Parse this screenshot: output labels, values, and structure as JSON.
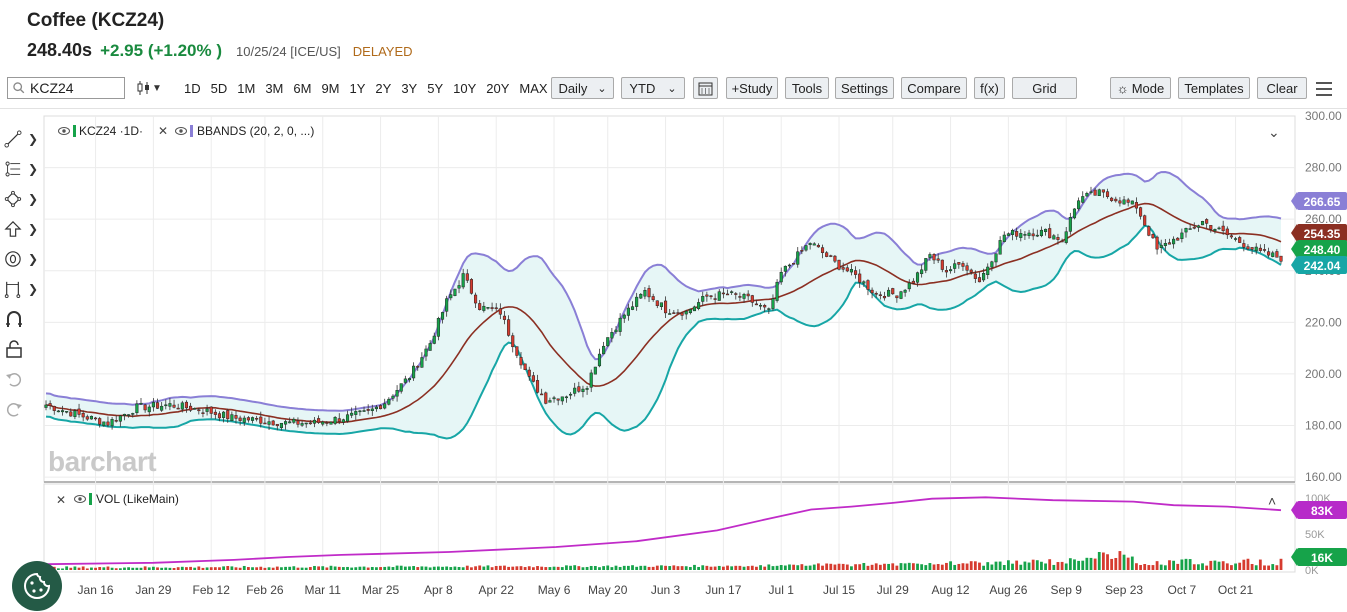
{
  "header": {
    "title": "Coffee (KCZ24)",
    "last": "248.40s",
    "change": "+2.95 (+1.20% )",
    "meta": "10/25/24 [ICE/US]",
    "delayed": "DELAYED"
  },
  "toolbar": {
    "symbol_value": "KCZ24",
    "ranges": [
      "1D",
      "5D",
      "1M",
      "3M",
      "6M",
      "9M",
      "1Y",
      "2Y",
      "3Y",
      "5Y",
      "10Y",
      "20Y",
      "MAX"
    ],
    "interval": "Daily",
    "period": "YTD",
    "study": "+Study",
    "tools": "Tools",
    "settings": "Settings",
    "compare": "Compare",
    "fx": "f(x)",
    "grid": "Grid",
    "mode": "Mode",
    "templates": "Templates",
    "clear": "Clear"
  },
  "legend": {
    "main": "KCZ24 ·1D·",
    "bbands": "BBANDS (20, 2, 0, ...)",
    "vol": "VOL (LikeMain)"
  },
  "logo": "barchart",
  "colors": {
    "up": "#16a34a",
    "down": "#d63b2f",
    "upper_band": "#8a7fd6",
    "middle_band": "#8b2f22",
    "lower_band": "#17a6a6",
    "band_fill": "#e6f6f6",
    "vol_avg": "#c02bc8"
  },
  "chart_data": [
    {
      "type": "candlestick",
      "title": "",
      "x_tick_labels": [
        "Jan 16",
        "Jan 29",
        "Feb 12",
        "Feb 26",
        "Mar 11",
        "Mar 25",
        "Apr 8",
        "Apr 22",
        "May 6",
        "May 20",
        "Jun 3",
        "Jun 17",
        "Jul 1",
        "Jul 15",
        "Jul 29",
        "Aug 12",
        "Aug 26",
        "Sep 9",
        "Sep 23",
        "Oct 7",
        "Oct 21"
      ],
      "y_ticks": [
        "160.00",
        "180.00",
        "200.00",
        "220.00",
        "240.00",
        "260.00",
        "280.00",
        "300.00"
      ],
      "ylim": [
        155,
        300
      ],
      "close_path": [
        [
          0,
          188
        ],
        [
          8,
          184
        ],
        [
          15,
          181
        ],
        [
          22,
          187
        ],
        [
          30,
          188
        ],
        [
          38,
          186
        ],
        [
          45,
          183
        ],
        [
          52,
          182
        ],
        [
          58,
          181
        ],
        [
          65,
          181
        ],
        [
          72,
          183
        ],
        [
          78,
          185
        ],
        [
          82,
          189
        ],
        [
          88,
          199
        ],
        [
          93,
          212
        ],
        [
          97,
          228
        ],
        [
          101,
          238
        ],
        [
          105,
          226
        ],
        [
          110,
          224
        ],
        [
          113,
          212
        ],
        [
          117,
          198
        ],
        [
          121,
          190
        ],
        [
          126,
          192
        ],
        [
          131,
          196
        ],
        [
          135,
          212
        ],
        [
          140,
          223
        ],
        [
          145,
          232
        ],
        [
          150,
          225
        ],
        [
          155,
          224
        ],
        [
          160,
          230
        ],
        [
          165,
          231
        ],
        [
          170,
          229
        ],
        [
          175,
          224
        ],
        [
          178,
          239
        ],
        [
          185,
          251
        ],
        [
          191,
          243
        ],
        [
          196,
          238
        ],
        [
          201,
          231
        ],
        [
          206,
          231
        ],
        [
          210,
          236
        ],
        [
          214,
          246
        ],
        [
          218,
          240
        ],
        [
          222,
          243
        ],
        [
          226,
          236
        ],
        [
          232,
          254
        ],
        [
          237,
          255
        ],
        [
          242,
          255
        ],
        [
          246,
          252
        ],
        [
          250,
          268
        ],
        [
          255,
          270
        ],
        [
          259,
          268
        ],
        [
          264,
          265
        ],
        [
          269,
          248
        ],
        [
          275,
          254
        ],
        [
          280,
          259
        ],
        [
          287,
          253
        ],
        [
          294,
          247
        ],
        [
          299,
          245
        ]
      ],
      "labels": {
        "upper_band": "266.65",
        "middle_band": "254.35",
        "last": "248.40",
        "lower_band": "242.04"
      }
    },
    {
      "type": "bar",
      "series_name": "VOL (LikeMain)",
      "y_ticks": [
        "0K",
        "50K",
        "100K"
      ],
      "ylim": [
        0,
        100
      ],
      "labels": {
        "vol_avg": "83K",
        "vol_last": "16K"
      },
      "avg_path": [
        [
          0,
          8
        ],
        [
          40,
          10
        ],
        [
          70,
          14
        ],
        [
          90,
          18
        ],
        [
          110,
          21
        ],
        [
          150,
          25
        ],
        [
          190,
          32
        ],
        [
          220,
          40
        ],
        [
          250,
          55
        ],
        [
          270,
          72
        ],
        [
          285,
          84
        ],
        [
          300,
          88
        ],
        [
          315,
          93
        ],
        [
          330,
          99
        ],
        [
          350,
          101
        ],
        [
          375,
          97
        ],
        [
          405,
          95
        ],
        [
          420,
          90
        ],
        [
          440,
          88
        ],
        [
          460,
          83
        ]
      ]
    }
  ]
}
